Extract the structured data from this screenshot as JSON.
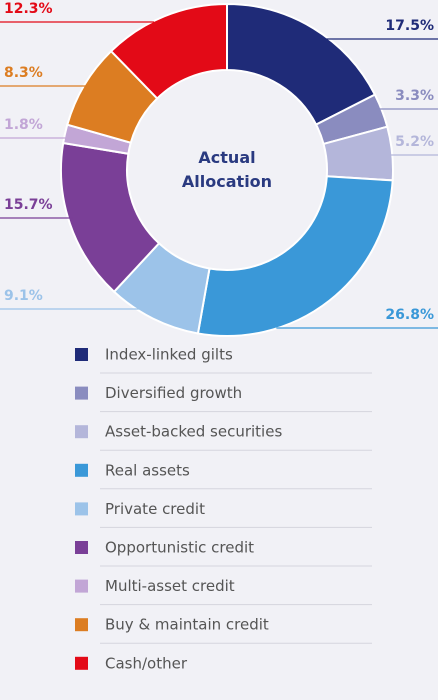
{
  "chart_data": {
    "type": "donut",
    "title": "Actual Allocation",
    "categories": [
      "Index-linked gilts",
      "Diversified growth",
      "Asset-backed securities",
      "Real assets",
      "Private credit",
      "Opportunistic credit",
      "Multi-asset credit",
      "Buy & maintain credit",
      "Cash/other"
    ],
    "values": [
      17.5,
      3.3,
      5.2,
      26.8,
      9.1,
      15.7,
      1.8,
      8.3,
      12.3
    ],
    "value_labels": [
      "17.5%",
      "3.3%",
      "5.2%",
      "26.8%",
      "9.1%",
      "15.7%",
      "1.8%",
      "8.3%",
      "12.3%"
    ],
    "colors": [
      "#1f2b78",
      "#8a8cbf",
      "#b4b6da",
      "#3a98d8",
      "#9cc3e9",
      "#7a3f97",
      "#c2a6d6",
      "#dc7d22",
      "#e30a17"
    ],
    "legend": "bottom"
  }
}
